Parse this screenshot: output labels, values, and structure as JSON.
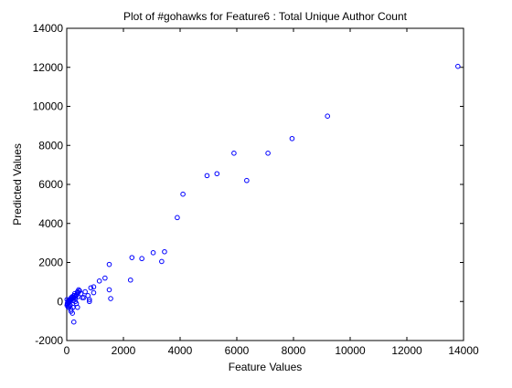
{
  "chart_data": {
    "type": "scatter",
    "title": "Plot of #gohawks for Feature6 : Total Unique Author Count",
    "xlabel": "Feature Values",
    "ylabel": "Predicted Values",
    "xlim": [
      0,
      14000
    ],
    "ylim": [
      -2000,
      14000
    ],
    "xticks": [
      0,
      2000,
      4000,
      6000,
      8000,
      10000,
      12000,
      14000
    ],
    "yticks": [
      -2000,
      0,
      2000,
      4000,
      6000,
      8000,
      10000,
      12000,
      14000
    ],
    "grid": false,
    "marker": "circle-open",
    "marker_color": "#0000ff",
    "series": [
      {
        "x": [
          13800,
          9200,
          7950,
          7100,
          5900,
          6350,
          5300,
          4950,
          4100,
          3900,
          3450,
          3350,
          3050,
          2650,
          2300,
          2250,
          1500,
          1350,
          1150,
          1500,
          1550,
          950,
          850,
          950,
          750,
          650,
          800,
          550,
          500,
          450,
          420,
          400,
          380,
          350,
          330,
          300,
          280,
          250,
          230,
          200,
          180,
          160,
          150,
          130,
          110,
          100,
          90,
          80,
          70,
          60,
          50,
          40,
          30,
          20,
          10,
          10,
          50,
          80,
          120,
          150,
          180,
          220,
          260,
          300,
          340,
          380,
          200,
          250,
          120,
          300,
          400,
          600,
          800,
          220,
          150
        ],
        "y": [
          12050,
          9500,
          8350,
          7600,
          7600,
          6200,
          6550,
          6450,
          5500,
          4300,
          2550,
          2050,
          2500,
          2200,
          2250,
          1100,
          1900,
          1200,
          1050,
          600,
          150,
          750,
          700,
          450,
          300,
          500,
          100,
          200,
          400,
          550,
          600,
          450,
          500,
          350,
          300,
          250,
          400,
          300,
          200,
          250,
          150,
          200,
          100,
          50,
          100,
          0,
          -50,
          50,
          0,
          -100,
          -50,
          0,
          -150,
          -100,
          -200,
          100,
          -300,
          -250,
          -200,
          -400,
          150,
          50,
          300,
          0,
          -100,
          -300,
          -600,
          -1050,
          -200,
          150,
          250,
          200,
          0,
          -300,
          -500
        ],
        "color": "#0000ff"
      }
    ]
  }
}
